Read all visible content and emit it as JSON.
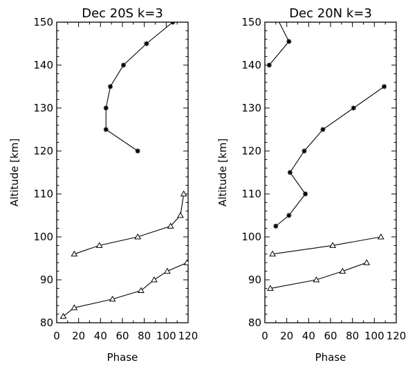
{
  "chart_data": [
    {
      "type": "line",
      "title": "Dec 20S k=3",
      "xlabel": "Phase",
      "ylabel": "Altitude [km]",
      "xlim": [
        0,
        120
      ],
      "ylim": [
        80,
        150
      ],
      "x_ticks": [
        "0",
        "20",
        "40",
        "60",
        "80",
        "100",
        "120"
      ],
      "y_ticks": [
        "80",
        "90",
        "100",
        "110",
        "120",
        "130",
        "140",
        "150"
      ],
      "series": [
        {
          "marker": "asterisk",
          "points": [
            [
              74,
              120
            ],
            [
              45,
              125
            ],
            [
              45,
              130
            ],
            [
              49,
              135
            ],
            [
              61,
              140
            ],
            [
              82,
              145
            ],
            [
              106,
              150
            ]
          ]
        },
        {
          "marker": "triangle",
          "points": [
            [
              16,
              96
            ],
            [
              39,
              98
            ],
            [
              74,
              100
            ],
            [
              104,
              102.5
            ],
            [
              113,
              105
            ],
            [
              116,
              110
            ]
          ]
        },
        {
          "marker": "triangle",
          "points": [
            [
              6,
              81.5
            ],
            [
              16,
              83.5
            ],
            [
              51,
              85.5
            ],
            [
              77,
              87.5
            ],
            [
              89,
              90
            ],
            [
              101,
              92
            ],
            [
              119,
              94
            ]
          ]
        }
      ]
    },
    {
      "type": "line",
      "title": "Dec 20N k=3",
      "xlabel": "Phase",
      "ylabel": "Altitude [km]",
      "xlim": [
        0,
        120
      ],
      "ylim": [
        80,
        150
      ],
      "x_ticks": [
        "0",
        "20",
        "40",
        "60",
        "80",
        "100",
        "120"
      ],
      "y_ticks": [
        "80",
        "90",
        "100",
        "110",
        "120",
        "130",
        "140",
        "150"
      ],
      "series": [
        {
          "marker": "asterisk",
          "points": [
            [
              11,
              151
            ],
            [
              22,
              145.5
            ],
            [
              4,
              140
            ]
          ]
        },
        {
          "marker": "asterisk",
          "points": [
            [
              109,
              135
            ],
            [
              81,
              130
            ],
            [
              53,
              125
            ],
            [
              36,
              120
            ],
            [
              23,
              115
            ],
            [
              37,
              110
            ],
            [
              22,
              105
            ],
            [
              10,
              102.5
            ]
          ]
        },
        {
          "marker": "triangle",
          "points": [
            [
              7,
              96
            ],
            [
              62,
              98
            ],
            [
              106,
              100
            ]
          ]
        },
        {
          "marker": "triangle",
          "points": [
            [
              5,
              88
            ],
            [
              47,
              90
            ],
            [
              71,
              92
            ],
            [
              93,
              94
            ]
          ]
        }
      ]
    }
  ]
}
